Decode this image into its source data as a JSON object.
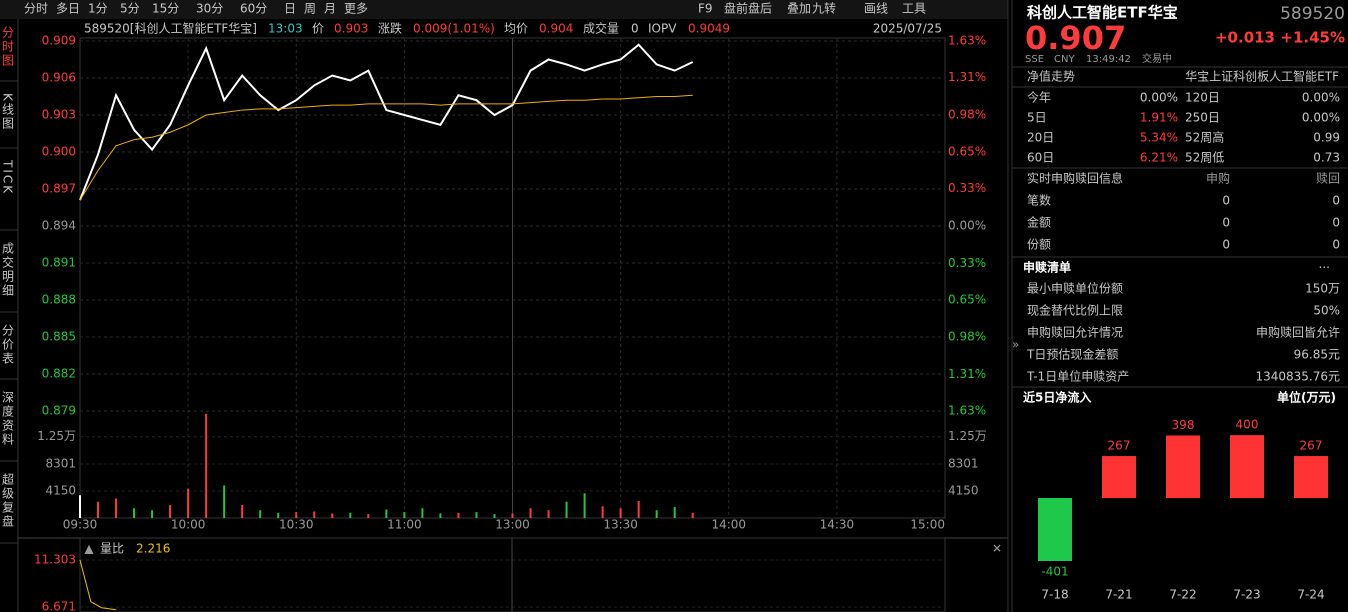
{
  "toolbar": {
    "left": [
      "分时",
      "多日",
      "1分",
      "5分",
      "15分",
      "30分",
      "60分",
      "日",
      "周",
      "月",
      "更多"
    ],
    "right": [
      "F9",
      "盘前盘后",
      "叠加",
      "九转",
      "画线",
      "工具"
    ]
  },
  "side_tabs": [
    "分时图",
    "K线图",
    "TICK",
    "成交明细",
    "分价表",
    "深度资料",
    "超级复盘"
  ],
  "info_bar": {
    "security": "589520[科创人工智能ETF华宝]",
    "time": "13:03",
    "price_label": "价",
    "price": "0.903",
    "change_label": "涨跌",
    "change": "0.009(1.01%)",
    "avg_label": "均价",
    "avg": "0.904",
    "volume_label": "成交量",
    "volume": "0",
    "iopv_label": "IOPV",
    "iopv": "0.9049",
    "date": "2025/07/25"
  },
  "ratio_header": {
    "label": "量比",
    "value": "2.216"
  },
  "chart_data": [
    {
      "type": "line",
      "x": [
        "09:30",
        "09:35",
        "09:40",
        "09:45",
        "09:50",
        "09:55",
        "10:00",
        "10:05",
        "10:10",
        "10:15",
        "10:20",
        "10:25",
        "10:30",
        "10:35",
        "10:40",
        "10:45",
        "10:50",
        "10:55",
        "11:00",
        "11:05",
        "11:10",
        "11:15",
        "11:20",
        "11:25",
        "11:30",
        "13:05",
        "13:10",
        "13:15",
        "13:20",
        "13:25",
        "13:30",
        "13:35",
        "13:40",
        "13:45",
        "13:50"
      ],
      "series": [
        {
          "color": "#ffffff",
          "values": [
            0.8961,
            0.8998,
            0.9046,
            0.9018,
            0.9002,
            0.9022,
            0.9054,
            0.9084,
            0.9042,
            0.9062,
            0.9046,
            0.9034,
            0.9042,
            0.9054,
            0.9062,
            0.9058,
            0.9066,
            0.9034,
            0.903,
            0.9026,
            0.9022,
            0.9046,
            0.9042,
            0.903,
            0.9038,
            0.9066,
            0.9075,
            0.9071,
            0.9066,
            0.9071,
            0.9075,
            0.9087,
            0.9071,
            0.9066,
            0.9073
          ]
        },
        {
          "color": "#f0b000",
          "values": [
            0.8961,
            0.8985,
            0.9005,
            0.901,
            0.9012,
            0.9016,
            0.9022,
            0.903,
            0.9032,
            0.9034,
            0.9035,
            0.9035,
            0.9036,
            0.9037,
            0.9038,
            0.9038,
            0.9039,
            0.9039,
            0.9039,
            0.9039,
            0.9038,
            0.9039,
            0.9039,
            0.9039,
            0.9039,
            0.904,
            0.9041,
            0.9042,
            0.9042,
            0.9043,
            0.9043,
            0.9044,
            0.9045,
            0.9045,
            0.9046
          ]
        }
      ],
      "ylim": [
        0.879,
        0.909
      ],
      "yticks": [
        0.909,
        0.906,
        0.903,
        {
          "value": 0.9,
          "label": "0.900"
        },
        0.897,
        0.894,
        0.891,
        0.888,
        0.885,
        0.882,
        0.879
      ],
      "y2lim": [
        -1.63,
        1.63
      ],
      "y2ticks": [
        {
          "value": 1.63,
          "label": "1.63%"
        },
        {
          "value": 1.31,
          "label": "1.31%"
        },
        {
          "value": 0.98,
          "label": "0.98%"
        },
        {
          "value": 0.65,
          "label": "0.65%"
        },
        {
          "value": 0.33,
          "label": "0.33%"
        },
        {
          "value": 0,
          "label": "0.00%"
        },
        {
          "value": -0.33,
          "label": "0.33%"
        },
        {
          "value": -0.65,
          "label": "0.65%"
        },
        {
          "value": -0.98,
          "label": "0.98%"
        },
        {
          "value": -1.31,
          "label": "1.31%"
        },
        {
          "value": -1.63,
          "label": "1.63%"
        }
      ],
      "xticks": [
        "09:30",
        "10:00",
        "10:30",
        "11:00",
        "13:00",
        "13:30",
        "14:00",
        "14:30",
        "15:00"
      ],
      "grid": true
    },
    {
      "type": "bar",
      "x": [
        "09:30",
        "09:35",
        "09:40",
        "09:45",
        "09:50",
        "09:55",
        "10:00",
        "10:05",
        "10:10",
        "10:15",
        "10:20",
        "10:25",
        "10:30",
        "10:35",
        "10:40",
        "10:45",
        "10:50",
        "10:55",
        "11:00",
        "11:05",
        "11:10",
        "11:15",
        "11:20",
        "11:25",
        "11:30",
        "13:05",
        "13:10",
        "13:15",
        "13:20",
        "13:25",
        "13:30",
        "13:35",
        "13:40",
        "13:45",
        "13:50"
      ],
      "values": [
        3500,
        2500,
        3000,
        1500,
        1200,
        2000,
        4500,
        16000,
        5000,
        2000,
        1200,
        800,
        900,
        1000,
        700,
        800,
        600,
        1300,
        900,
        1500,
        700,
        800,
        900,
        600,
        700,
        1500,
        1200,
        2500,
        3800,
        1800,
        1500,
        2600,
        1200,
        1700,
        800
      ],
      "ylim": [
        0,
        16450
      ],
      "yticks": [
        {
          "value": 12500,
          "label": "1.25万"
        },
        8301,
        4150
      ]
    },
    {
      "type": "line",
      "x": [
        "09:30",
        "09:33",
        "09:36",
        "09:40"
      ],
      "values": [
        11.303,
        7.2,
        6.6,
        6.4
      ],
      "color": "#f0c000",
      "ylim": [
        6.18,
        11.303
      ],
      "yticks": [
        11.303,
        6.671
      ]
    },
    {
      "type": "bar",
      "title": "近5日净流入",
      "unit": "单位(万元)",
      "categories": [
        "7-18",
        "7-21",
        "7-22",
        "7-23",
        "7-24"
      ],
      "values": [
        -401,
        267,
        398,
        400,
        267
      ],
      "colors": {
        "positive": "#ff3333",
        "negative": "#1ec84a"
      }
    }
  ],
  "quote": {
    "name": "科创人工智能ETF华宝",
    "code": "589520",
    "price": "0.907",
    "change": "+0.013",
    "pct": "+1.45%",
    "exchange": "SSE",
    "currency": "CNY",
    "time": "13:49:42",
    "status": "交易中"
  },
  "nav": {
    "title": "净值走势",
    "index": "华宝上证科创板人工智能ETF",
    "rows": [
      [
        "今年",
        "0.00%",
        "120日",
        "0.00%"
      ],
      [
        "5日",
        "1.91%",
        "250日",
        "0.00%"
      ],
      [
        "20日",
        "5.34%",
        "52周高",
        "0.99"
      ],
      [
        "60日",
        "6.21%",
        "52周低",
        "0.73"
      ]
    ]
  },
  "subscription": {
    "header": [
      "实时申购赎回信息",
      "申购",
      "赎回"
    ],
    "rows": [
      [
        "笔数",
        "0",
        "0"
      ],
      [
        "金额",
        "0",
        "0"
      ],
      [
        "份额",
        "0",
        "0"
      ]
    ]
  },
  "creation_list": {
    "title": "申赎清单",
    "more": "···",
    "rows": [
      [
        "最小申赎单位份额",
        "150万"
      ],
      [
        "现金替代比例上限",
        "50%"
      ],
      [
        "申购赎回允许情况",
        "申购赎回皆允许"
      ],
      [
        "T日预估现金差额",
        "96.85元"
      ],
      [
        "T-1日单位申赎资产",
        "1340835.76元"
      ]
    ]
  }
}
